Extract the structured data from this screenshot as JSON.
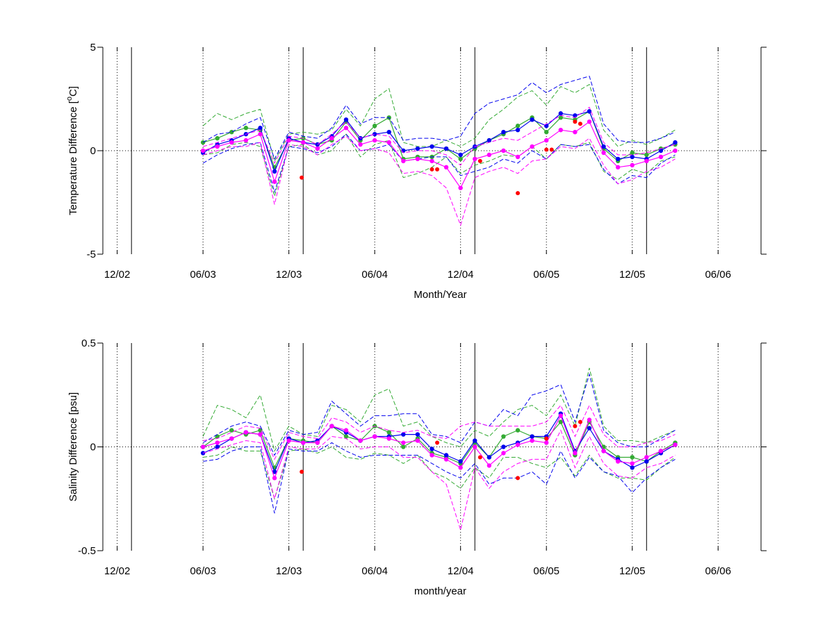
{
  "chart_data": [
    {
      "type": "line",
      "ylabel_prefix": "Temperature Difference [",
      "ylabel_sup": "o",
      "ylabel_suffix": "C]",
      "xlabel": "Month/Year",
      "x_unit": "month",
      "xlim": [
        "2002-11-01",
        "2006-09-01"
      ],
      "ylim": [
        -5,
        5
      ],
      "yticks": [
        -5,
        0,
        5
      ],
      "ytick_labels": [
        "-5",
        "0",
        "5"
      ],
      "xticks": [
        "2002-12-01",
        "2003-06-01",
        "2003-12-01",
        "2004-06-01",
        "2004-12-01",
        "2005-06-01",
        "2005-12-01",
        "2006-06-01"
      ],
      "xtick_labels": [
        "12/02",
        "06/03",
        "12/03",
        "06/04",
        "12/04",
        "06/05",
        "12/05",
        "06/06"
      ],
      "zero_line": true,
      "vertical_solid_lines": [
        "2003-01-01",
        "2004-01-01",
        "2005-01-01",
        "2006-01-01"
      ],
      "grid": "dotted vertical at x ticks",
      "x": [
        "2003-06-01",
        "2003-07-01",
        "2003-08-01",
        "2003-09-01",
        "2003-10-01",
        "2003-11-01",
        "2003-12-01",
        "2004-01-01",
        "2004-02-01",
        "2004-03-01",
        "2004-04-01",
        "2004-05-01",
        "2004-06-01",
        "2004-07-01",
        "2004-08-01",
        "2004-09-01",
        "2004-10-01",
        "2004-11-01",
        "2004-12-01",
        "2005-01-01",
        "2005-02-01",
        "2005-03-01",
        "2005-04-01",
        "2005-05-01",
        "2005-06-01",
        "2005-07-01",
        "2005-08-01",
        "2005-09-01",
        "2005-10-01",
        "2005-11-01",
        "2005-12-01",
        "2006-01-01",
        "2006-02-01",
        "2006-03-01"
      ],
      "series": [
        {
          "color": "#33aa33",
          "marker": true,
          "values": [
            0.4,
            0.6,
            0.9,
            1.1,
            1.0,
            -0.8,
            0.5,
            0.6,
            0.3,
            0.5,
            1.4,
            0.5,
            1.2,
            1.6,
            -0.4,
            -0.3,
            -0.3,
            0.1,
            -0.4,
            0.1,
            0.5,
            0.8,
            1.2,
            1.6,
            0.9,
            1.6,
            1.5,
            1.9,
            0.1,
            -0.5,
            -0.1,
            -0.2,
            0.1,
            0.3
          ],
          "upper": [
            1.2,
            1.8,
            1.5,
            1.8,
            2.0,
            -0.5,
            0.8,
            0.9,
            0.8,
            1.0,
            2.0,
            1.2,
            2.5,
            3.0,
            0.4,
            0.2,
            0.2,
            0.5,
            0.2,
            0.6,
            1.5,
            2.0,
            2.6,
            2.9,
            2.2,
            3.1,
            2.8,
            3.2,
            1.0,
            0.2,
            0.5,
            0.3,
            0.6,
            1.0
          ],
          "lower": [
            -0.2,
            -0.1,
            0.3,
            0.4,
            0.2,
            -2.2,
            0.2,
            0.3,
            -0.2,
            0.0,
            0.8,
            -0.3,
            0.3,
            0.5,
            -1.3,
            -1.1,
            -0.8,
            -0.3,
            -1.1,
            -0.7,
            -0.5,
            -0.2,
            -0.3,
            0.2,
            -0.4,
            0.3,
            0.2,
            0.4,
            -1.0,
            -1.4,
            -0.9,
            -1.1,
            -0.5,
            -0.3
          ]
        },
        {
          "color": "#0000ee",
          "marker": true,
          "values": [
            -0.1,
            0.3,
            0.5,
            0.8,
            1.1,
            -1.0,
            0.6,
            0.4,
            0.3,
            0.7,
            1.5,
            0.6,
            0.8,
            0.9,
            0.0,
            0.1,
            0.2,
            0.1,
            -0.2,
            0.2,
            0.5,
            0.9,
            1.0,
            1.5,
            1.2,
            1.8,
            1.7,
            1.9,
            0.2,
            -0.4,
            -0.3,
            -0.4,
            0.0,
            0.4
          ],
          "upper": [
            0.4,
            0.8,
            0.9,
            1.3,
            1.6,
            -0.4,
            0.9,
            0.7,
            0.6,
            1.1,
            2.2,
            1.3,
            1.6,
            1.6,
            0.5,
            0.6,
            0.6,
            0.5,
            0.7,
            1.8,
            2.3,
            2.5,
            2.7,
            3.3,
            2.8,
            3.2,
            3.4,
            3.6,
            1.3,
            0.5,
            0.4,
            0.4,
            0.6,
            0.9
          ],
          "lower": [
            -0.6,
            -0.2,
            0.1,
            0.3,
            0.4,
            -2.0,
            0.2,
            0.1,
            -0.1,
            0.2,
            0.8,
            0.0,
            0.1,
            0.3,
            -0.5,
            -0.4,
            -0.3,
            -0.3,
            -1.2,
            -1.0,
            -0.8,
            -0.4,
            -0.6,
            0.0,
            -0.4,
            0.3,
            0.2,
            0.3,
            -0.9,
            -1.6,
            -1.2,
            -1.3,
            -0.6,
            -0.2
          ]
        },
        {
          "color": "#ff00ff",
          "marker": true,
          "values": [
            0.0,
            0.2,
            0.4,
            0.5,
            0.8,
            -1.5,
            0.5,
            0.4,
            0.1,
            0.6,
            1.1,
            0.3,
            0.5,
            0.4,
            -0.5,
            -0.4,
            -0.5,
            -0.8,
            -1.8,
            -0.4,
            -0.2,
            0.0,
            -0.3,
            0.2,
            0.5,
            1.0,
            0.9,
            1.4,
            -0.1,
            -0.8,
            -0.7,
            -0.5,
            -0.3,
            0.0
          ],
          "upper": [
            0.2,
            0.4,
            0.6,
            0.8,
            1.0,
            -0.6,
            0.7,
            0.6,
            0.3,
            0.8,
            1.4,
            0.6,
            0.8,
            0.7,
            -0.1,
            0.0,
            0.0,
            -0.2,
            -0.7,
            0.2,
            0.4,
            0.6,
            0.5,
            0.9,
            1.3,
            1.7,
            1.6,
            2.1,
            0.4,
            -0.2,
            -0.2,
            -0.1,
            0.1,
            0.3
          ],
          "lower": [
            -0.2,
            0.0,
            0.2,
            0.2,
            0.4,
            -2.6,
            0.3,
            0.2,
            -0.2,
            0.3,
            0.7,
            0.0,
            0.1,
            -0.1,
            -1.1,
            -1.0,
            -1.2,
            -1.8,
            -3.6,
            -1.3,
            -1.0,
            -0.8,
            -1.1,
            -0.5,
            -0.4,
            0.2,
            0.1,
            0.6,
            -0.7,
            -1.6,
            -1.4,
            -1.0,
            -0.8,
            -0.4
          ]
        }
      ],
      "red_points": [
        {
          "x": "2003-12-28",
          "y": -1.3
        },
        {
          "x": "2004-10-01",
          "y": -0.9
        },
        {
          "x": "2004-10-12",
          "y": -0.9
        },
        {
          "x": "2005-01-12",
          "y": -0.5
        },
        {
          "x": "2005-04-01",
          "y": -2.05
        },
        {
          "x": "2005-06-01",
          "y": 0.05
        },
        {
          "x": "2005-06-12",
          "y": 0.05
        },
        {
          "x": "2005-08-01",
          "y": 1.4
        },
        {
          "x": "2005-08-12",
          "y": 1.3
        }
      ]
    },
    {
      "type": "line",
      "ylabel": "Salinity Difference [psu]",
      "xlabel": "month/year",
      "x_unit": "month",
      "xlim": [
        "2002-11-01",
        "2006-09-01"
      ],
      "ylim": [
        -0.5,
        0.5
      ],
      "yticks": [
        -0.5,
        0,
        0.5
      ],
      "ytick_labels": [
        "-0.5",
        "0",
        "0.5"
      ],
      "xticks": [
        "2002-12-01",
        "2003-06-01",
        "2003-12-01",
        "2004-06-01",
        "2004-12-01",
        "2005-06-01",
        "2005-12-01",
        "2006-06-01"
      ],
      "xtick_labels": [
        "12/02",
        "06/03",
        "12/03",
        "06/04",
        "12/04",
        "06/05",
        "12/05",
        "06/06"
      ],
      "zero_line": true,
      "vertical_solid_lines": [
        "2003-01-01",
        "2004-01-01",
        "2005-01-01",
        "2006-01-01"
      ],
      "grid": "dotted vertical at x ticks",
      "x": [
        "2003-06-01",
        "2003-07-01",
        "2003-08-01",
        "2003-09-01",
        "2003-10-01",
        "2003-11-01",
        "2003-12-01",
        "2004-01-01",
        "2004-02-01",
        "2004-03-01",
        "2004-04-01",
        "2004-05-01",
        "2004-06-01",
        "2004-07-01",
        "2004-08-01",
        "2004-09-01",
        "2004-10-01",
        "2004-11-01",
        "2004-12-01",
        "2005-01-01",
        "2005-02-01",
        "2005-03-01",
        "2005-04-01",
        "2005-05-01",
        "2005-06-01",
        "2005-07-01",
        "2005-08-01",
        "2005-09-01",
        "2005-10-01",
        "2005-11-01",
        "2005-12-01",
        "2006-01-01",
        "2006-02-01",
        "2006-03-01"
      ],
      "series": [
        {
          "color": "#33aa33",
          "marker": true,
          "values": [
            0.0,
            0.05,
            0.08,
            0.06,
            0.08,
            -0.1,
            0.04,
            0.03,
            0.02,
            0.1,
            0.05,
            0.03,
            0.1,
            0.07,
            0.0,
            0.04,
            -0.03,
            -0.05,
            -0.08,
            0.02,
            -0.05,
            0.05,
            0.08,
            0.05,
            0.04,
            0.12,
            -0.04,
            0.12,
            0.0,
            -0.05,
            -0.05,
            -0.07,
            -0.02,
            0.02
          ],
          "upper": [
            0.05,
            0.2,
            0.18,
            0.14,
            0.25,
            -0.02,
            0.1,
            0.06,
            0.05,
            0.2,
            0.18,
            0.12,
            0.25,
            0.28,
            0.1,
            0.12,
            0.05,
            0.02,
            0.0,
            0.08,
            0.05,
            0.12,
            0.18,
            0.2,
            0.15,
            0.25,
            0.1,
            0.38,
            0.1,
            0.03,
            0.03,
            0.02,
            0.05,
            0.08
          ],
          "lower": [
            -0.05,
            -0.04,
            0.0,
            -0.02,
            -0.02,
            -0.25,
            -0.02,
            -0.01,
            -0.03,
            0.0,
            -0.05,
            -0.06,
            -0.03,
            -0.04,
            -0.08,
            -0.04,
            -0.12,
            -0.15,
            -0.2,
            -0.1,
            -0.15,
            -0.05,
            -0.05,
            -0.08,
            -0.1,
            -0.05,
            -0.14,
            -0.04,
            -0.12,
            -0.15,
            -0.15,
            -0.16,
            -0.1,
            -0.05
          ]
        },
        {
          "color": "#0000ee",
          "marker": true,
          "values": [
            -0.03,
            0.0,
            0.04,
            0.07,
            0.06,
            -0.12,
            0.04,
            0.02,
            0.03,
            0.1,
            0.07,
            0.03,
            0.05,
            0.05,
            0.06,
            0.06,
            -0.01,
            -0.04,
            -0.07,
            0.03,
            -0.05,
            0.0,
            0.02,
            0.05,
            0.05,
            0.16,
            -0.02,
            0.09,
            -0.02,
            -0.06,
            -0.1,
            -0.07,
            -0.03,
            0.01
          ],
          "upper": [
            0.02,
            0.06,
            0.1,
            0.12,
            0.1,
            -0.04,
            0.08,
            0.06,
            0.07,
            0.22,
            0.16,
            0.1,
            0.15,
            0.15,
            0.16,
            0.16,
            0.06,
            0.05,
            0.02,
            0.12,
            0.1,
            0.18,
            0.15,
            0.25,
            0.27,
            0.3,
            0.12,
            0.35,
            0.08,
            0.02,
            0.0,
            0.0,
            0.04,
            0.08
          ],
          "lower": [
            -0.07,
            -0.06,
            -0.02,
            0.0,
            0.0,
            -0.32,
            -0.01,
            -0.02,
            -0.02,
            0.02,
            -0.02,
            -0.05,
            -0.04,
            -0.04,
            -0.04,
            -0.04,
            -0.08,
            -0.12,
            -0.15,
            -0.08,
            -0.18,
            -0.15,
            -0.15,
            -0.12,
            -0.18,
            -0.02,
            -0.15,
            -0.05,
            -0.12,
            -0.14,
            -0.22,
            -0.15,
            -0.1,
            -0.06
          ]
        },
        {
          "color": "#ff00ff",
          "marker": true,
          "values": [
            0.0,
            0.02,
            0.04,
            0.07,
            0.06,
            -0.15,
            0.03,
            0.02,
            0.02,
            0.1,
            0.08,
            0.03,
            0.05,
            0.04,
            0.02,
            0.03,
            -0.04,
            -0.06,
            -0.1,
            0.0,
            -0.09,
            -0.03,
            0.01,
            0.03,
            0.02,
            0.15,
            -0.03,
            0.13,
            -0.02,
            -0.07,
            -0.08,
            -0.05,
            -0.02,
            0.01
          ],
          "upper": [
            0.03,
            0.04,
            0.07,
            0.1,
            0.09,
            -0.06,
            0.07,
            0.05,
            0.04,
            0.14,
            0.12,
            0.07,
            0.1,
            0.08,
            0.07,
            0.08,
            0.05,
            0.04,
            0.1,
            0.12,
            0.1,
            0.1,
            0.1,
            0.1,
            0.12,
            0.2,
            0.05,
            0.2,
            0.06,
            0.0,
            0.0,
            0.02,
            0.03,
            0.06
          ],
          "lower": [
            -0.03,
            -0.01,
            0.01,
            0.03,
            0.02,
            -0.25,
            0.0,
            -0.01,
            -0.01,
            0.05,
            0.04,
            -0.01,
            0.0,
            0.0,
            -0.05,
            -0.05,
            -0.12,
            -0.18,
            -0.4,
            -0.1,
            -0.2,
            -0.12,
            -0.08,
            -0.06,
            -0.06,
            0.08,
            -0.1,
            0.05,
            -0.08,
            -0.14,
            -0.15,
            -0.1,
            -0.08,
            -0.04
          ]
        }
      ],
      "red_points": [
        {
          "x": "2003-12-28",
          "y": -0.12
        },
        {
          "x": "2004-10-12",
          "y": 0.02
        },
        {
          "x": "2005-01-12",
          "y": -0.05
        },
        {
          "x": "2005-04-01",
          "y": -0.15
        },
        {
          "x": "2005-06-01",
          "y": 0.04
        },
        {
          "x": "2005-08-01",
          "y": 0.1
        },
        {
          "x": "2005-08-12",
          "y": 0.12
        }
      ]
    }
  ]
}
